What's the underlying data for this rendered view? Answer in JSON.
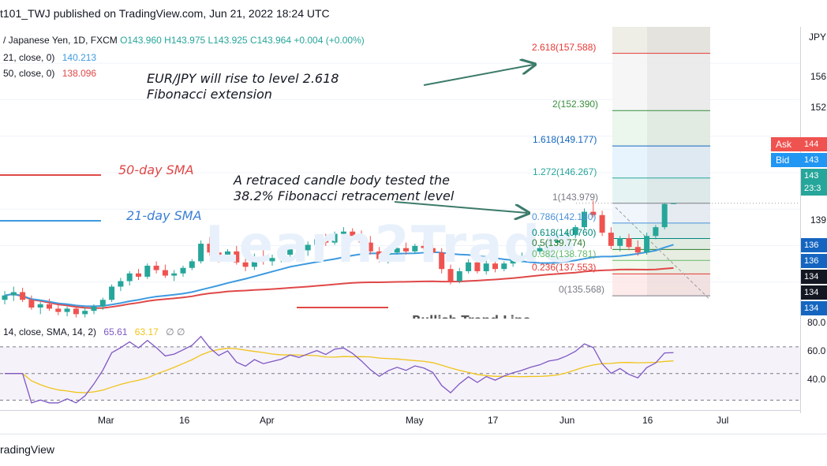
{
  "header": {
    "published_line": "t101_TWJ published on TradingView.com, Jun 21, 2022 18:24 UTC"
  },
  "legend": {
    "symbol": "/ Japanese Yen, 1D, FXCM",
    "open": "O143.960",
    "high": "H143.975",
    "low": "L143.925",
    "close": "C143.964",
    "change": "+0.004 (+0.00%)",
    "sma21_label": "21, close, 0)",
    "sma21_value": "140.213",
    "sma50_label": "50, close, 0)",
    "sma50_value": "138.096",
    "rsi_label": "14, close, SMA, 14, 2)",
    "rsi_value": "65.61",
    "rsi_sma_value": "63.17",
    "rsi_extra": "∅ ∅"
  },
  "annotations": {
    "main_line1": "EUR/JPY will rise to level 2.618",
    "main_line2": "Fibonacci extension",
    "retrace_line1": "A retraced candle body tested the",
    "retrace_line2": "38.2% Fibonacci retracement level",
    "sma50": "50-day SMA",
    "sma21": "21-day SMA",
    "watermark": "Learn2Trade",
    "hidden_label": "Bullish Trend Line"
  },
  "fib_levels": [
    {
      "label": "2.618(157.588)",
      "color": "#e53935",
      "ratio": 2.618
    },
    {
      "label": "2(152.390)",
      "color": "#388e3c",
      "ratio": 2
    },
    {
      "label": "1.618(149.177)",
      "color": "#1565c0",
      "ratio": 1.618
    },
    {
      "label": "1.272(146.267)",
      "color": "#26a69a",
      "ratio": 1.272
    },
    {
      "label": "1(143.979)",
      "color": "#787b86",
      "ratio": 1
    },
    {
      "label": "0.786(142.180)",
      "color": "#4a90d9",
      "ratio": 0.786
    },
    {
      "label": "0.618(140.760)",
      "color": "#00897b",
      "ratio": 0.618
    },
    {
      "label": "0.5(139.774)",
      "color": "#2e7d32",
      "ratio": 0.5
    },
    {
      "label": "0.382(138.781)",
      "color": "#66bb6a",
      "ratio": 0.382
    },
    {
      "label": "0.236(137.553)",
      "color": "#e53935",
      "ratio": 0.236
    },
    {
      "label": "0(135.568)",
      "color": "#787b86",
      "ratio": 0
    }
  ],
  "price_axis": {
    "currency": "JPY",
    "ticks": [
      "156",
      "152",
      "139"
    ],
    "ask_label": "Ask",
    "ask_value": "144",
    "bid_label": "Bid",
    "bid_value": "143",
    "last_value": "143",
    "last_time": "23:3",
    "tags": [
      {
        "text": "136",
        "color": "#1565c0"
      },
      {
        "text": "136",
        "color": "#1565c0"
      },
      {
        "text": "134",
        "color": "#131722"
      },
      {
        "text": "134",
        "color": "#131722"
      },
      {
        "text": "134",
        "color": "#1565c0"
      }
    ]
  },
  "rsi_axis": {
    "ticks": [
      "80.0",
      "60.0",
      "40.0"
    ]
  },
  "time_axis": {
    "ticks": [
      "Mar",
      "16",
      "Apr",
      "May",
      "17",
      "Jun",
      "16",
      "Jul"
    ]
  },
  "footer": {
    "brand": "radingView"
  },
  "colors": {
    "up": "#26a69a",
    "down": "#ef5350",
    "sma21": "#3d9ae0",
    "sma50": "#e04848",
    "rsi": "#7e57c2",
    "rsi_sma": "#f0c419",
    "annotation_arrow": "#3b7a6a"
  },
  "chart_data": {
    "type": "candlestick",
    "symbol": "EUR/JPY",
    "timeframe": "1D",
    "x_range": [
      "2022-02-15",
      "2022-07-05"
    ],
    "y_range": [
      133.5,
      160.0
    ],
    "candles": [
      {
        "o": 135.2,
        "h": 136.0,
        "l": 134.8,
        "c": 135.6
      },
      {
        "o": 135.6,
        "h": 136.4,
        "l": 135.1,
        "c": 135.9
      },
      {
        "o": 135.9,
        "h": 136.3,
        "l": 135.0,
        "c": 135.2
      },
      {
        "o": 135.2,
        "h": 135.6,
        "l": 134.3,
        "c": 134.5
      },
      {
        "o": 134.5,
        "h": 135.0,
        "l": 133.9,
        "c": 134.8
      },
      {
        "o": 134.8,
        "h": 135.3,
        "l": 134.2,
        "c": 134.4
      },
      {
        "o": 134.4,
        "h": 134.9,
        "l": 133.8,
        "c": 134.1
      },
      {
        "o": 134.1,
        "h": 134.6,
        "l": 133.7,
        "c": 134.4
      },
      {
        "o": 134.4,
        "h": 134.7,
        "l": 133.6,
        "c": 133.9
      },
      {
        "o": 133.9,
        "h": 134.5,
        "l": 133.6,
        "c": 134.2
      },
      {
        "o": 134.2,
        "h": 134.8,
        "l": 133.9,
        "c": 134.6
      },
      {
        "o": 134.6,
        "h": 135.4,
        "l": 134.3,
        "c": 135.2
      },
      {
        "o": 135.2,
        "h": 136.6,
        "l": 135.0,
        "c": 136.4
      },
      {
        "o": 136.4,
        "h": 137.2,
        "l": 136.0,
        "c": 136.9
      },
      {
        "o": 136.9,
        "h": 137.8,
        "l": 136.5,
        "c": 137.6
      },
      {
        "o": 137.6,
        "h": 138.0,
        "l": 137.0,
        "c": 137.3
      },
      {
        "o": 137.3,
        "h": 138.5,
        "l": 137.1,
        "c": 138.3
      },
      {
        "o": 138.3,
        "h": 138.7,
        "l": 137.6,
        "c": 137.9
      },
      {
        "o": 137.9,
        "h": 138.4,
        "l": 137.2,
        "c": 137.4
      },
      {
        "o": 137.4,
        "h": 137.9,
        "l": 136.9,
        "c": 137.6
      },
      {
        "o": 137.6,
        "h": 138.3,
        "l": 137.3,
        "c": 138.1
      },
      {
        "o": 138.1,
        "h": 138.9,
        "l": 137.9,
        "c": 138.7
      },
      {
        "o": 138.7,
        "h": 140.6,
        "l": 138.5,
        "c": 140.3
      },
      {
        "o": 140.3,
        "h": 140.9,
        "l": 139.2,
        "c": 139.5
      },
      {
        "o": 139.5,
        "h": 139.9,
        "l": 138.6,
        "c": 138.9
      },
      {
        "o": 138.9,
        "h": 139.8,
        "l": 138.7,
        "c": 139.6
      },
      {
        "o": 139.6,
        "h": 140.1,
        "l": 138.4,
        "c": 138.6
      },
      {
        "o": 138.6,
        "h": 139.2,
        "l": 137.8,
        "c": 138.2
      },
      {
        "o": 138.2,
        "h": 139.4,
        "l": 137.9,
        "c": 139.1
      },
      {
        "o": 139.1,
        "h": 139.7,
        "l": 138.4,
        "c": 138.7
      },
      {
        "o": 138.7,
        "h": 139.3,
        "l": 138.3,
        "c": 139.0
      },
      {
        "o": 139.0,
        "h": 139.6,
        "l": 138.6,
        "c": 139.3
      },
      {
        "o": 139.3,
        "h": 140.2,
        "l": 138.9,
        "c": 139.9
      },
      {
        "o": 139.9,
        "h": 140.4,
        "l": 139.4,
        "c": 139.7
      },
      {
        "o": 139.7,
        "h": 140.5,
        "l": 139.2,
        "c": 140.2
      },
      {
        "o": 140.2,
        "h": 140.9,
        "l": 139.9,
        "c": 140.7
      },
      {
        "o": 140.7,
        "h": 141.2,
        "l": 140.1,
        "c": 140.4
      },
      {
        "o": 140.4,
        "h": 141.4,
        "l": 140.2,
        "c": 141.2
      },
      {
        "o": 141.2,
        "h": 141.8,
        "l": 140.8,
        "c": 141.4
      },
      {
        "o": 141.4,
        "h": 141.7,
        "l": 140.7,
        "c": 141.0
      },
      {
        "o": 141.0,
        "h": 141.5,
        "l": 140.2,
        "c": 140.4
      },
      {
        "o": 140.4,
        "h": 141.0,
        "l": 139.3,
        "c": 139.6
      },
      {
        "o": 139.6,
        "h": 140.0,
        "l": 138.6,
        "c": 138.9
      },
      {
        "o": 138.9,
        "h": 139.8,
        "l": 138.5,
        "c": 139.5
      },
      {
        "o": 139.5,
        "h": 140.2,
        "l": 139.1,
        "c": 139.9
      },
      {
        "o": 139.9,
        "h": 140.4,
        "l": 139.3,
        "c": 139.6
      },
      {
        "o": 139.6,
        "h": 140.3,
        "l": 139.4,
        "c": 140.1
      },
      {
        "o": 140.1,
        "h": 140.6,
        "l": 139.7,
        "c": 139.9
      },
      {
        "o": 139.9,
        "h": 140.2,
        "l": 139.3,
        "c": 139.5
      },
      {
        "o": 139.5,
        "h": 139.9,
        "l": 137.6,
        "c": 138.0
      },
      {
        "o": 138.0,
        "h": 138.4,
        "l": 136.6,
        "c": 136.9
      },
      {
        "o": 136.9,
        "h": 138.1,
        "l": 136.7,
        "c": 137.8
      },
      {
        "o": 137.8,
        "h": 138.9,
        "l": 137.6,
        "c": 138.6
      },
      {
        "o": 138.6,
        "h": 139.0,
        "l": 137.6,
        "c": 137.8
      },
      {
        "o": 137.8,
        "h": 138.8,
        "l": 137.5,
        "c": 138.5
      },
      {
        "o": 138.5,
        "h": 138.9,
        "l": 137.7,
        "c": 138.0
      },
      {
        "o": 138.0,
        "h": 138.7,
        "l": 137.8,
        "c": 138.5
      },
      {
        "o": 138.5,
        "h": 139.2,
        "l": 138.2,
        "c": 138.9
      },
      {
        "o": 138.9,
        "h": 139.5,
        "l": 138.6,
        "c": 139.2
      },
      {
        "o": 139.2,
        "h": 139.8,
        "l": 138.8,
        "c": 139.6
      },
      {
        "o": 139.6,
        "h": 140.2,
        "l": 139.3,
        "c": 139.9
      },
      {
        "o": 139.9,
        "h": 140.6,
        "l": 139.6,
        "c": 140.4
      },
      {
        "o": 140.4,
        "h": 140.9,
        "l": 139.8,
        "c": 140.6
      },
      {
        "o": 140.6,
        "h": 141.4,
        "l": 140.3,
        "c": 141.1
      },
      {
        "o": 141.1,
        "h": 142.0,
        "l": 140.8,
        "c": 141.8
      },
      {
        "o": 141.8,
        "h": 143.5,
        "l": 141.6,
        "c": 143.2
      },
      {
        "o": 143.2,
        "h": 144.2,
        "l": 142.7,
        "c": 142.9
      },
      {
        "o": 142.9,
        "h": 143.3,
        "l": 141.0,
        "c": 141.3
      },
      {
        "o": 141.3,
        "h": 141.8,
        "l": 139.8,
        "c": 140.1
      },
      {
        "o": 140.1,
        "h": 141.0,
        "l": 139.6,
        "c": 140.8
      },
      {
        "o": 140.8,
        "h": 141.2,
        "l": 139.7,
        "c": 140.0
      },
      {
        "o": 140.0,
        "h": 140.6,
        "l": 139.2,
        "c": 139.5
      },
      {
        "o": 139.5,
        "h": 141.3,
        "l": 139.3,
        "c": 141.0
      },
      {
        "o": 141.0,
        "h": 142.0,
        "l": 140.7,
        "c": 141.8
      },
      {
        "o": 141.8,
        "h": 144.0,
        "l": 141.6,
        "c": 143.9
      },
      {
        "o": 143.96,
        "h": 143.975,
        "l": 143.925,
        "c": 143.964
      }
    ],
    "sma21_last": 140.213,
    "sma50_last": 138.096,
    "rsi": {
      "period": 14,
      "last": 65.61,
      "sma_last": 63.17,
      "levels": [
        70,
        50,
        30
      ],
      "y_range": [
        25,
        90
      ]
    }
  }
}
